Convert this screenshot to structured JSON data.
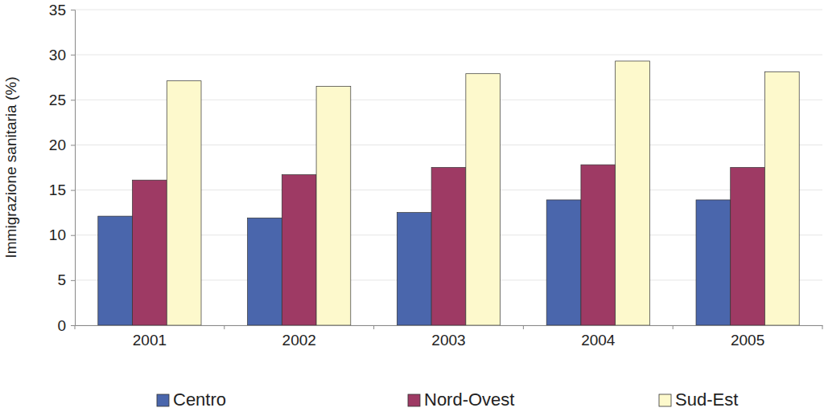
{
  "chart_data": {
    "type": "bar",
    "y_label": "Immigrazione sanitaria (%)",
    "categories": [
      "2001",
      "2002",
      "2003",
      "2004",
      "2005"
    ],
    "series": [
      {
        "name": "Centro",
        "color": "#4a66ac",
        "values": [
          12.1,
          11.9,
          12.5,
          13.9,
          13.9
        ]
      },
      {
        "name": "Nord-Ovest",
        "color": "#9e3a64",
        "values": [
          16.1,
          16.7,
          17.5,
          17.8,
          17.5
        ]
      },
      {
        "name": "Sud-Est",
        "color": "#fdf9cc",
        "values": [
          27.1,
          26.5,
          27.9,
          29.3,
          28.1
        ]
      }
    ],
    "ylim": [
      0,
      35
    ],
    "yticks": [
      0,
      5,
      10,
      15,
      20,
      25,
      30,
      35
    ],
    "grid": true,
    "legend": "bottom"
  }
}
